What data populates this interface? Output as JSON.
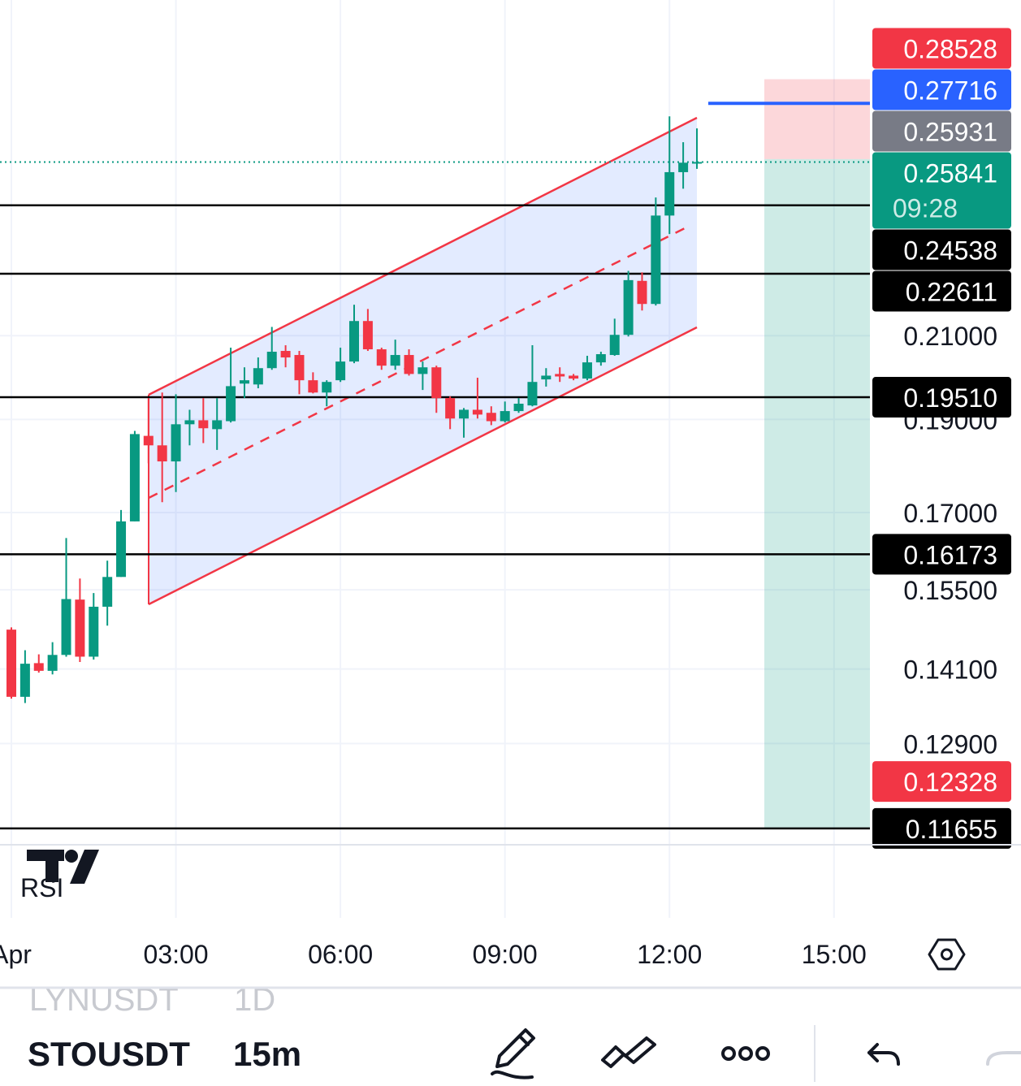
{
  "chart_data": {
    "type": "candlestick",
    "log": true,
    "grid": true,
    "up_color": "#089981",
    "down_color": "#f23645",
    "categories": [
      "Apr",
      null,
      null,
      null,
      null,
      null,
      null,
      null,
      null,
      null,
      null,
      null,
      "03:00",
      null,
      null,
      null,
      null,
      null,
      null,
      null,
      null,
      null,
      null,
      null,
      "06:00",
      null,
      null,
      null,
      null,
      null,
      null,
      null,
      null,
      null,
      null,
      null,
      "09:00",
      null,
      null,
      null,
      null,
      null,
      null,
      null,
      null,
      null,
      null,
      null,
      "12:00",
      null,
      null,
      null,
      null,
      null,
      null,
      null,
      null,
      null,
      null,
      null,
      "15:00",
      null,
      null
    ],
    "open": [
      0.1478,
      0.1364,
      0.142,
      0.1407,
      0.1434,
      0.1532,
      0.1431,
      0.1519,
      0.1574,
      0.1682,
      0.1863,
      0.1842,
      0.1807,
      0.1889,
      0.1898,
      0.1878,
      0.1896,
      0.1983,
      0.1981,
      0.202,
      0.2062,
      0.2052,
      0.1991,
      0.1962,
      0.1991,
      0.2036,
      0.2137,
      0.2066,
      0.2026,
      0.2052,
      0.2006,
      0.2022,
      0.1949,
      0.1902,
      0.1922,
      0.1915,
      0.1896,
      0.1919,
      0.1932,
      0.1993,
      0.2006,
      0.2002,
      0.1995,
      0.2034,
      0.2052,
      0.2102,
      0.2242,
      0.2181,
      0.2424,
      0.2553,
      0.258,
      null,
      null,
      null,
      null,
      null,
      null,
      null,
      null,
      null,
      null,
      null,
      null
    ],
    "high": [
      0.1482,
      0.1442,
      0.1435,
      0.1456,
      0.1649,
      0.1571,
      0.1544,
      0.1605,
      0.1705,
      0.1874,
      0.1949,
      0.1962,
      0.1958,
      0.1922,
      0.1949,
      0.1949,
      0.207,
      0.2022,
      0.2046,
      0.2122,
      0.2076,
      0.2062,
      0.201,
      0.1991,
      0.207,
      0.2179,
      0.2168,
      0.207,
      0.209,
      0.2066,
      0.2036,
      0.2026,
      0.1953,
      0.1926,
      0.1997,
      0.193,
      0.1941,
      0.1949,
      0.2076,
      0.202,
      0.2022,
      0.2006,
      0.205,
      0.206,
      0.2143,
      0.2269,
      0.2265,
      0.2477,
      0.2729,
      0.2646,
      0.269,
      null,
      null,
      null,
      null,
      null,
      null,
      null,
      null,
      null,
      null,
      null,
      null
    ],
    "low": [
      0.1361,
      0.1354,
      0.1404,
      0.1401,
      0.1431,
      0.1422,
      0.1426,
      0.1485,
      0.1574,
      0.1682,
      0.1803,
      0.1721,
      0.1742,
      0.1842,
      0.1847,
      0.1832,
      0.1893,
      0.1949,
      0.1972,
      0.2016,
      0.2022,
      0.1958,
      0.196,
      0.193,
      0.1987,
      0.2032,
      0.2062,
      0.2016,
      0.2016,
      0.2002,
      0.1968,
      0.1915,
      0.1878,
      0.1859,
      0.1902,
      0.1887,
      0.1893,
      0.1915,
      0.193,
      0.1976,
      0.1987,
      0.1991,
      0.1991,
      0.2026,
      0.205,
      0.2098,
      0.2164,
      0.2177,
      0.2371,
      0.2503,
      0.2563,
      null,
      null,
      null,
      null,
      null,
      null,
      null,
      null,
      null,
      null,
      null,
      null
    ],
    "close": [
      0.1364,
      0.1419,
      0.1407,
      0.1434,
      0.1533,
      0.1431,
      0.1519,
      0.1574,
      0.1682,
      0.1867,
      0.1842,
      0.1807,
      0.1889,
      0.1898,
      0.188,
      0.1898,
      0.1977,
      0.1991,
      0.202,
      0.206,
      0.2046,
      0.1991,
      0.1962,
      0.1987,
      0.2036,
      0.2137,
      0.2066,
      0.2026,
      0.2052,
      0.2006,
      0.2022,
      0.1949,
      0.1902,
      0.1922,
      0.1911,
      0.1896,
      0.1919,
      0.1936,
      0.1987,
      0.2002,
      0.2,
      0.1995,
      0.2034,
      0.2054,
      0.2102,
      0.2244,
      0.2181,
      0.2424,
      0.2553,
      0.2582,
      0.25841,
      null,
      null,
      null,
      null,
      null,
      null,
      null,
      null,
      null,
      null,
      null,
      null
    ],
    "ylim": [
      0.1143,
      0.3136
    ],
    "yticks": [
      {
        "value": 0.21,
        "label": "0.21000"
      },
      {
        "value": 0.19,
        "label": "0.19000"
      },
      {
        "value": 0.17,
        "label": "0.17000"
      },
      {
        "value": 0.155,
        "label": "0.15500"
      },
      {
        "value": 0.141,
        "label": "0.14100"
      },
      {
        "value": 0.129,
        "label": "0.12900"
      }
    ],
    "levels": [
      {
        "value": 0.28528,
        "label": "0.28528",
        "color": "#f23645"
      },
      {
        "value": 0.27716,
        "label": "0.27716",
        "color": "#2962ff",
        "line": "ray"
      },
      {
        "value": 0.25931,
        "label": "0.25931",
        "color": "#787b86"
      },
      {
        "value": 0.25841,
        "label": "0.25841",
        "color": "#089981",
        "line": "dotted",
        "countdown": "09:28"
      },
      {
        "value": 0.24538,
        "label": "0.24538",
        "color": "#000000",
        "line": "full"
      },
      {
        "value": 0.22611,
        "label": "0.22611",
        "color": "#000000",
        "line": "full"
      },
      {
        "value": 0.1951,
        "label": "0.19510",
        "color": "#000000",
        "line": "full"
      },
      {
        "value": 0.16173,
        "label": "0.16173",
        "color": "#000000",
        "line": "full"
      },
      {
        "value": 0.12328,
        "label": "0.12328",
        "color": "#f23645"
      },
      {
        "value": 0.11655,
        "label": "0.11655",
        "color": "#000000",
        "line": "full"
      }
    ],
    "indicator": "RSI"
  },
  "toolbar": {
    "symbol": "STOUSDT",
    "interval": "15m",
    "previous_symbol": "LYNUSDT",
    "previous_interval": "1D"
  }
}
